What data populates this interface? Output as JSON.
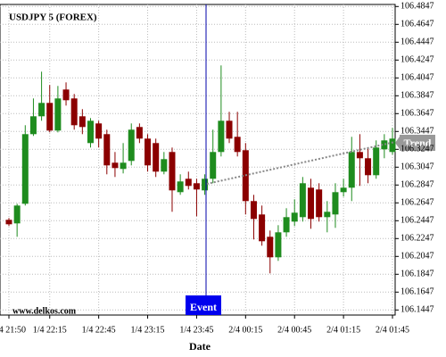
{
  "chart_data": {
    "type": "candlestick",
    "title": "USDJPY 5 (FOREX)",
    "watermark": "www.delkos.com",
    "x_label": "Date",
    "annotations": {
      "event": "Event",
      "trend": "Trend"
    },
    "categories": [
      "1/4 21:50",
      null,
      null,
      null,
      null,
      "1/4 22:15",
      null,
      null,
      null,
      null,
      null,
      "1/4 22:45",
      null,
      null,
      null,
      null,
      null,
      "1/4 23:15",
      null,
      null,
      null,
      null,
      null,
      "1/4 23:45",
      null,
      null,
      null,
      null,
      null,
      "2/4 00:15",
      null,
      null,
      null,
      null,
      null,
      "2/4 00:45",
      null,
      null,
      null,
      null,
      null,
      "2/4 01:15",
      null,
      null,
      null,
      null,
      null,
      "2/4 01:45"
    ],
    "open": [
      106.2457,
      106.2417,
      106.2637,
      106.3417,
      106.3617,
      106.3767,
      106.3457,
      106.3917,
      106.3817,
      106.3617,
      106.3317,
      106.3537,
      106.3417,
      106.3097,
      106.3027,
      106.3117,
      106.3497,
      106.3367,
      106.3317,
      106.2997,
      106.3217,
      106.2767,
      106.2917,
      106.2867,
      106.2787,
      106.2917,
      106.3217,
      106.3567,
      106.3387,
      106.3237,
      106.2667,
      106.2517,
      106.2267,
      106.2037,
      106.2317,
      106.2437,
      106.2487,
      106.2817,
      106.2797,
      106.2487,
      106.2517,
      106.2767,
      106.2817,
      106.3217,
      106.3147,
      106.2957,
      106.3247,
      106.3217
    ],
    "high": [
      106.2477,
      106.2637,
      106.3517,
      106.3817,
      106.4117,
      106.3967,
      106.3957,
      106.3997,
      106.3867,
      106.3697,
      106.3597,
      106.3567,
      106.3467,
      106.3217,
      106.3317,
      106.3537,
      106.3537,
      106.3417,
      106.3367,
      106.3217,
      106.3267,
      106.2967,
      106.2997,
      106.2917,
      106.2967,
      106.3467,
      106.4187,
      106.3667,
      106.3667,
      106.3317,
      106.2737,
      106.2617,
      106.2337,
      106.2397,
      106.2587,
      106.2687,
      106.2937,
      106.2917,
      106.2867,
      106.2667,
      106.2867,
      106.2917,
      106.3387,
      106.3417,
      106.3267,
      106.3347,
      106.3417,
      106.3487
    ],
    "low": [
      106.2387,
      106.2267,
      106.2617,
      106.3397,
      106.3567,
      106.3437,
      106.3437,
      106.3737,
      106.3467,
      106.3417,
      106.3267,
      106.3267,
      106.2967,
      106.2937,
      106.2977,
      106.3067,
      106.3317,
      106.2997,
      106.2937,
      106.2967,
      106.2547,
      106.2737,
      106.2797,
      106.2497,
      106.2737,
      106.2867,
      106.3167,
      106.3317,
      106.3167,
      106.2517,
      106.2237,
      106.2167,
      106.1857,
      106.1997,
      106.2267,
      106.2387,
      106.2437,
      106.2357,
      106.2437,
      106.2317,
      106.2367,
      106.2717,
      106.2667,
      106.2837,
      106.2867,
      106.2917,
      106.3147,
      106.3187
    ],
    "close": [
      106.2407,
      106.2617,
      106.3417,
      106.3617,
      106.3767,
      106.3457,
      106.3817,
      106.3797,
      106.3517,
      106.3497,
      106.3567,
      106.3367,
      106.3067,
      106.3037,
      106.3097,
      106.3467,
      106.3367,
      106.3067,
      106.2997,
      106.3137,
      106.2787,
      106.2887,
      106.2837,
      106.2797,
      106.2917,
      106.3217,
      106.3567,
      106.3367,
      106.3217,
      106.2667,
      106.2467,
      106.2217,
      106.2037,
      106.2317,
      106.2487,
      106.2537,
      106.2867,
      106.2467,
      106.2487,
      106.2547,
      106.2767,
      106.2817,
      106.3217,
      106.3147,
      106.2957,
      106.3267,
      106.3347,
      106.3367
    ],
    "up_color": "#1e8c1e",
    "down_color": "#8b0000",
    "ylim": [
      106.139,
      106.487
    ],
    "yticks": [
      106.4847,
      106.4647,
      106.4447,
      106.4247,
      106.4047,
      106.3847,
      106.3647,
      106.3447,
      106.3247,
      106.3047,
      106.2847,
      106.2647,
      106.2447,
      106.2247,
      106.2047,
      106.1847,
      106.1647,
      106.1447
    ],
    "grid": true
  }
}
